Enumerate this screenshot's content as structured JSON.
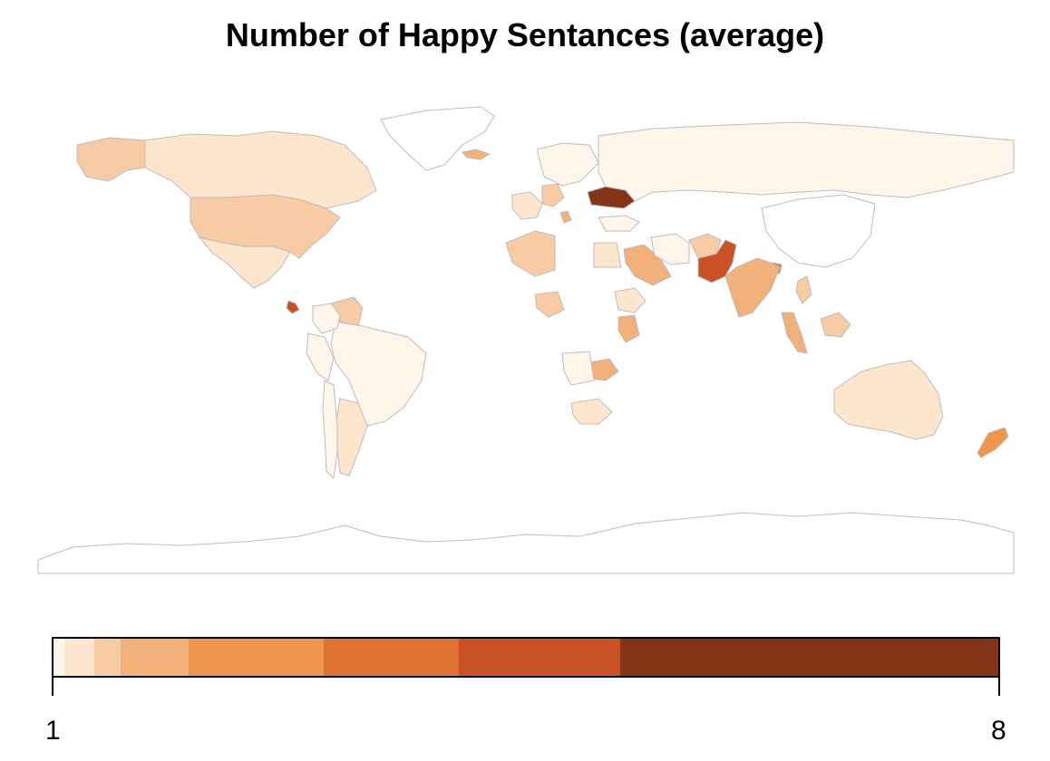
{
  "title": "Number of Happy Sentances (average)",
  "legend": {
    "min_label": "1",
    "max_label": "8",
    "bins": [
      {
        "from": 1.0,
        "to": 1.08,
        "color": "#fff5eb"
      },
      {
        "from": 1.08,
        "to": 1.3,
        "color": "#fee6ce"
      },
      {
        "from": 1.3,
        "to": 1.5,
        "color": "#f7cca4"
      },
      {
        "from": 1.5,
        "to": 2.0,
        "color": "#f2b07b"
      },
      {
        "from": 2.0,
        "to": 3.0,
        "color": "#ee9650"
      },
      {
        "from": 3.0,
        "to": 4.0,
        "color": "#e07234"
      },
      {
        "from": 4.0,
        "to": 5.2,
        "color": "#c95124"
      },
      {
        "from": 5.2,
        "to": 8.0,
        "color": "#843417"
      }
    ]
  },
  "map": {
    "no_data_color": "#ffffff",
    "border_color": "#bdbdbd",
    "colored_regions": [
      {
        "name": "Ukraine",
        "color": "#843417"
      },
      {
        "name": "Pakistan",
        "color": "#c95124"
      },
      {
        "name": "Bangladesh",
        "color": "#e07234"
      },
      {
        "name": "Costa Rica",
        "color": "#c95124"
      },
      {
        "name": "New Zealand",
        "color": "#ee9650"
      },
      {
        "name": "India",
        "color": "#f2b07b"
      },
      {
        "name": "Saudi Arabia",
        "color": "#f2b07b"
      },
      {
        "name": "Kenya",
        "color": "#f2b07b"
      },
      {
        "name": "Zambia",
        "color": "#f2b07b"
      },
      {
        "name": "Malaysia",
        "color": "#f2b07b"
      },
      {
        "name": "Iceland",
        "color": "#f2b07b"
      },
      {
        "name": "Serbia",
        "color": "#f2b07b"
      },
      {
        "name": "Alaska",
        "color": "#f7cca4"
      },
      {
        "name": "United States",
        "color": "#f7cca4"
      },
      {
        "name": "Algeria",
        "color": "#f7cca4"
      },
      {
        "name": "Nigeria",
        "color": "#f7cca4"
      },
      {
        "name": "Venezuela",
        "color": "#f7cca4"
      },
      {
        "name": "Afghanistan",
        "color": "#f7cca4"
      },
      {
        "name": "Germany",
        "color": "#f7cca4"
      },
      {
        "name": "Philippines",
        "color": "#f7cca4"
      },
      {
        "name": "Borneo",
        "color": "#f7cca4"
      },
      {
        "name": "Canada",
        "color": "#fee6ce"
      },
      {
        "name": "Mexico",
        "color": "#fee6ce"
      },
      {
        "name": "Australia",
        "color": "#fee6ce"
      },
      {
        "name": "South Africa",
        "color": "#fee6ce"
      },
      {
        "name": "France",
        "color": "#fee6ce"
      },
      {
        "name": "Egypt",
        "color": "#fee6ce"
      },
      {
        "name": "Ethiopia",
        "color": "#fee6ce"
      },
      {
        "name": "Argentina",
        "color": "#fee6ce"
      },
      {
        "name": "Russia",
        "color": "#fff5eb"
      },
      {
        "name": "Brazil",
        "color": "#fff5eb"
      },
      {
        "name": "Peru",
        "color": "#fff5eb"
      },
      {
        "name": "Colombia",
        "color": "#fff5eb"
      },
      {
        "name": "Chile",
        "color": "#fff5eb"
      },
      {
        "name": "Scandinavia",
        "color": "#fff5eb"
      },
      {
        "name": "Turkey",
        "color": "#fff5eb"
      },
      {
        "name": "Iran",
        "color": "#fff5eb"
      },
      {
        "name": "Angola",
        "color": "#fff5eb"
      },
      {
        "name": "Greenland",
        "color": "#ffffff"
      },
      {
        "name": "China",
        "color": "#ffffff"
      },
      {
        "name": "Antarctica",
        "color": "#ffffff"
      }
    ]
  }
}
